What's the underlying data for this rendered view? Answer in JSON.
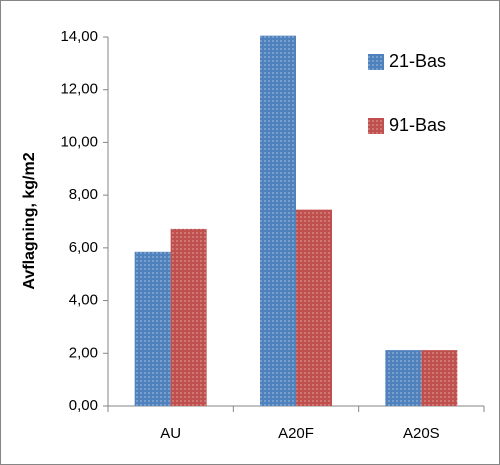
{
  "chart_data": {
    "type": "bar",
    "y_label": "Avflagning, kg/m2",
    "categories": [
      "AU",
      "A20F",
      "A20S"
    ],
    "series": [
      {
        "name": "21-Bas",
        "color": "#4f81bd",
        "values": [
          5.85,
          14.05,
          2.12
        ]
      },
      {
        "name": "91-Bas",
        "color": "#c0504d",
        "values": [
          6.72,
          7.45,
          2.12
        ]
      }
    ],
    "ylim": [
      0,
      14
    ],
    "yticks": [
      {
        "value": 0,
        "label": "0,00"
      },
      {
        "value": 2,
        "label": "2,00"
      },
      {
        "value": 4,
        "label": "4,00"
      },
      {
        "value": 6,
        "label": "6,00"
      },
      {
        "value": 8,
        "label": "8,00"
      },
      {
        "value": 10,
        "label": "10,00"
      },
      {
        "value": 12,
        "label": "12,00"
      },
      {
        "value": 14,
        "label": "14,00"
      }
    ],
    "grid": false,
    "legend": "top-right"
  }
}
